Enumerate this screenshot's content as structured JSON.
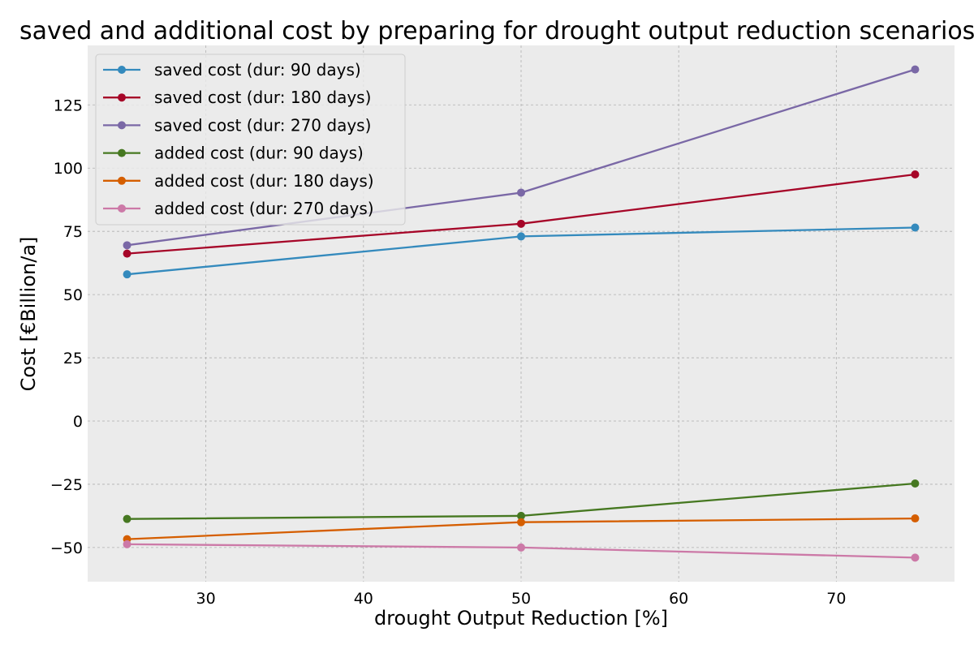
{
  "chart_data": {
    "type": "line",
    "title": "saved and additional cost by preparing for drought output reduction scenarios",
    "xlabel": "drought Output Reduction [%]",
    "ylabel": "Cost [€Billion/a]",
    "x": [
      25,
      50,
      75
    ],
    "xlim": [
      22.5,
      77.5
    ],
    "ylim": [
      -63.5,
      148.5
    ],
    "xticks": [
      30,
      40,
      50,
      60,
      70
    ],
    "yticks": [
      -50,
      -25,
      0,
      25,
      50,
      75,
      100,
      125
    ],
    "xtick_labels": [
      "30",
      "40",
      "50",
      "60",
      "70"
    ],
    "ytick_labels": [
      "−50",
      "−25",
      "0",
      "25",
      "50",
      "75",
      "100",
      "125"
    ],
    "grid": true,
    "legend_position": "upper-left",
    "series": [
      {
        "name": "saved cost (dur: 90 days)",
        "color": "#348ABD",
        "values": [
          58,
          73,
          76.5
        ]
      },
      {
        "name": "saved cost (dur: 180 days)",
        "color": "#A60628",
        "values": [
          66.2,
          78,
          97.5
        ]
      },
      {
        "name": "saved cost (dur: 270 days)",
        "color": "#7A68A6",
        "values": [
          69.5,
          90.3,
          139
        ]
      },
      {
        "name": "added cost (dur: 90 days)",
        "color": "#467821",
        "values": [
          -38.7,
          -37.5,
          -24.7
        ]
      },
      {
        "name": "added cost (dur: 180 days)",
        "color": "#D55E00",
        "values": [
          -46.7,
          -40,
          -38.5
        ]
      },
      {
        "name": "added cost (dur: 270 days)",
        "color": "#CC79A7",
        "values": [
          -48.7,
          -50,
          -54
        ]
      }
    ]
  }
}
